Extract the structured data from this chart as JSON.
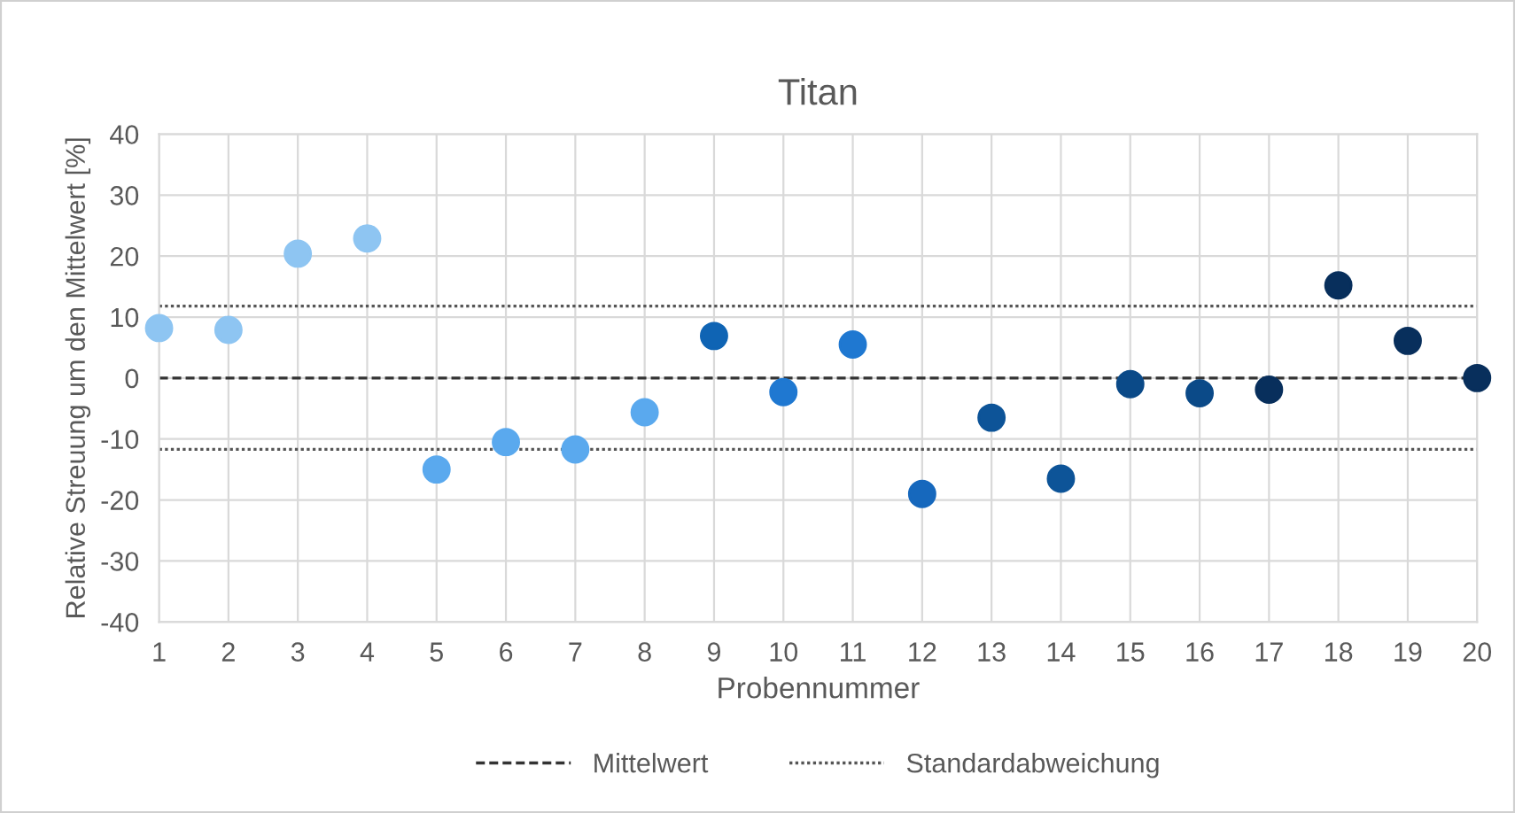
{
  "chart_data": {
    "type": "scatter",
    "title": "Titan",
    "xlabel": "Probennummer",
    "ylabel": "Relative Streuung um den Mittelwert [%]",
    "x": [
      1,
      2,
      3,
      4,
      5,
      6,
      7,
      8,
      9,
      10,
      11,
      12,
      13,
      14,
      15,
      16,
      17,
      18,
      19,
      20
    ],
    "series": [
      {
        "values": [
          8.2,
          7.9,
          20.4,
          22.9,
          -15.0,
          -10.5,
          -11.7,
          -5.6,
          6.9,
          -2.3,
          5.5,
          -19.0,
          -6.5,
          -16.5,
          -1.0,
          -2.5,
          -1.9,
          15.2,
          6.1,
          0
        ],
        "colors": [
          "#8ec5f2",
          "#8ec5f2",
          "#8ec5f2",
          "#8ec5f2",
          "#5aa9ee",
          "#5aa9ee",
          "#5aa9ee",
          "#5aa9ee",
          "#0f64b4",
          "#1f78d1",
          "#1f78d1",
          "#1668bd",
          "#0d5498",
          "#0d5498",
          "#0b4a88",
          "#0b4a88",
          "#082f5c",
          "#082f5c",
          "#082f5c",
          "#082f5c"
        ]
      }
    ],
    "marker": "circle",
    "xlim": [
      1,
      20
    ],
    "xticks": [
      1,
      2,
      3,
      4,
      5,
      6,
      7,
      8,
      9,
      10,
      11,
      12,
      13,
      14,
      15,
      16,
      17,
      18,
      19,
      20
    ],
    "ylim": [
      -40,
      40
    ],
    "yticks": [
      -40,
      -30,
      -20,
      -10,
      0,
      10,
      20,
      30,
      40
    ],
    "ref_lines": [
      {
        "axis": "y",
        "value": 0,
        "label": "Mittelwert",
        "color": "#333333",
        "line_style": "dashed"
      },
      {
        "axis": "y",
        "value": 11.8,
        "label": "Standardabweichung",
        "color": "#555555",
        "line_style": "dotted"
      },
      {
        "axis": "y",
        "value": -11.7,
        "label": null,
        "color": "#555555",
        "line_style": "dotted"
      }
    ],
    "grid": true,
    "legend": "bottom"
  }
}
